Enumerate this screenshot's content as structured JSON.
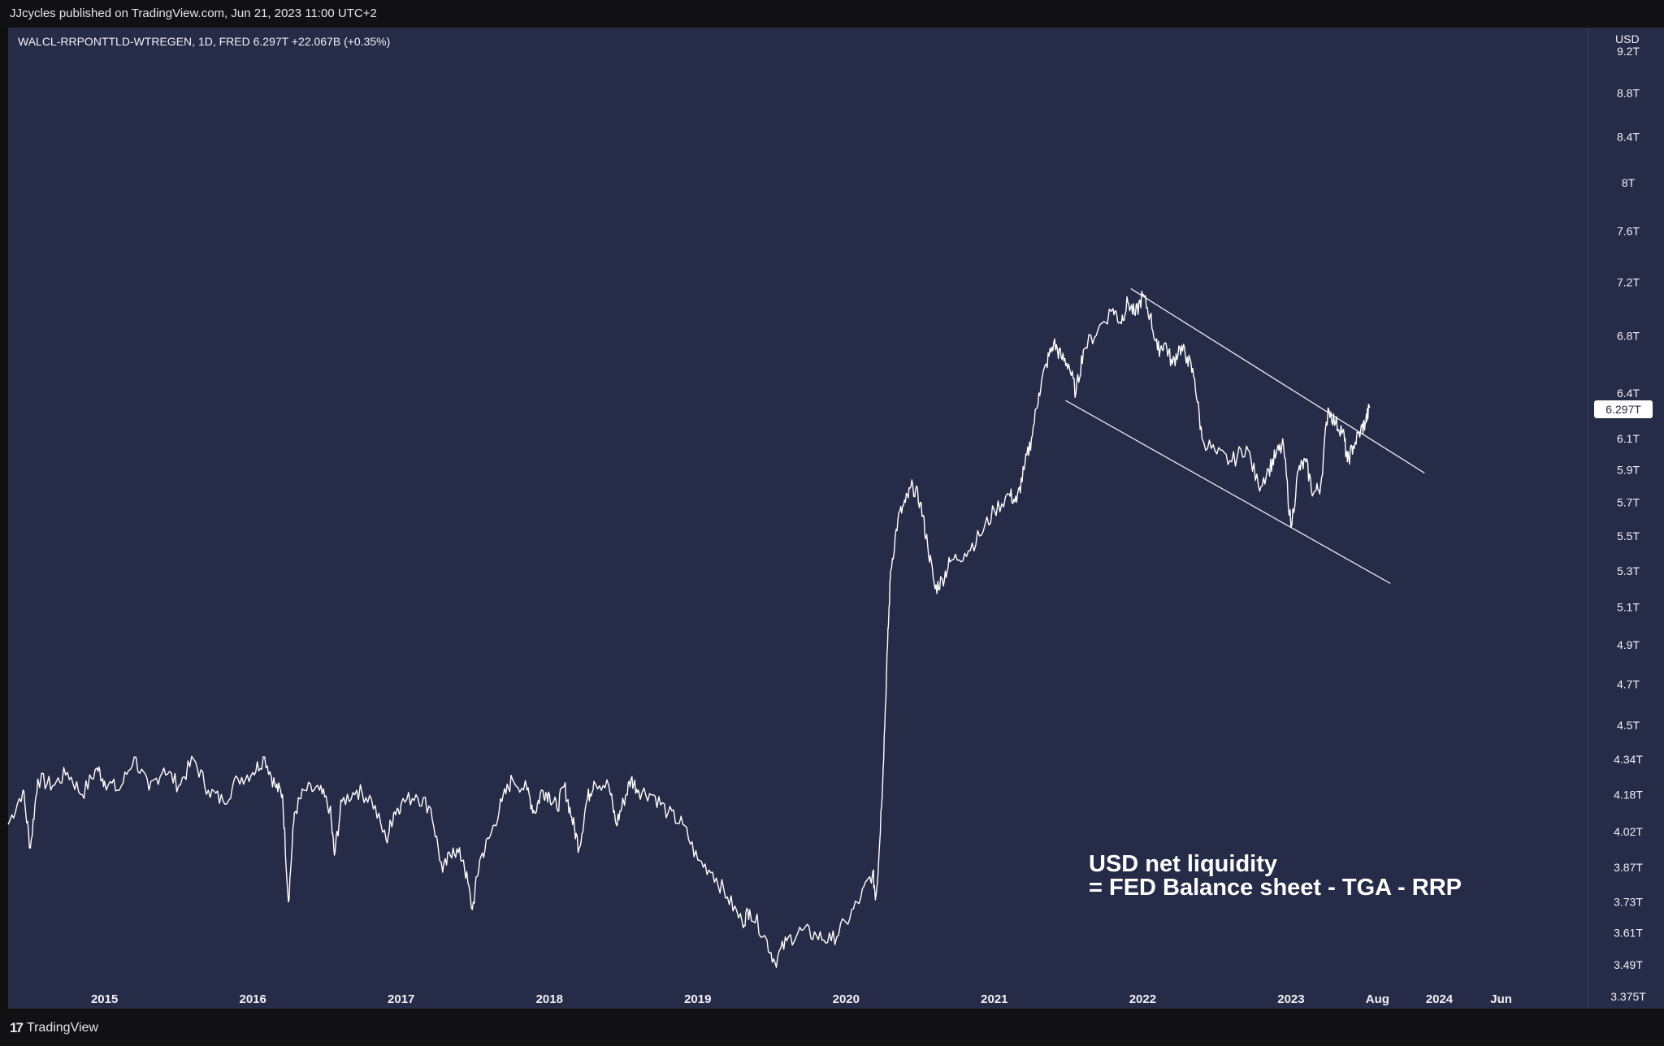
{
  "header": {
    "publisher": "JJcycles published on TradingView.com, Jun 21, 2023 11:00 UTC+2"
  },
  "footer": {
    "logo_mark": "17",
    "logo_text": "TradingView"
  },
  "colors": {
    "background": "#262c47",
    "line": "#ffffff",
    "text": "#f1f2f6"
  },
  "chart_data": {
    "type": "line",
    "symbol": "WALCL-RRPONTTLD-WTREGEN",
    "interval": "1D",
    "source": "FRED",
    "last_value": "6.297T",
    "change": "+22.067B (+0.35%)",
    "currency": "USD",
    "price_label": "6.297T",
    "y_scale": "log",
    "y_unit": "T",
    "ylim": [
      3.36,
      9.35
    ],
    "xlim": [
      2014.35,
      2025.0
    ],
    "y_ticks": [
      "9.2T",
      "8.8T",
      "8.4T",
      "8T",
      "7.6T",
      "7.2T",
      "6.8T",
      "6.4T",
      "6.1T",
      "5.9T",
      "5.7T",
      "5.5T",
      "5.3T",
      "5.1T",
      "4.9T",
      "4.7T",
      "4.5T",
      "4.34T",
      "4.18T",
      "4.02T",
      "3.87T",
      "3.73T",
      "3.61T",
      "3.49T",
      "3.375T"
    ],
    "x_ticks": [
      {
        "label": "2015",
        "x": 2015.0
      },
      {
        "label": "2016",
        "x": 2016.0
      },
      {
        "label": "2017",
        "x": 2017.0
      },
      {
        "label": "2018",
        "x": 2018.0
      },
      {
        "label": "2019",
        "x": 2019.0
      },
      {
        "label": "2020",
        "x": 2020.0
      },
      {
        "label": "2021",
        "x": 2021.0
      },
      {
        "label": "2022",
        "x": 2022.0
      },
      {
        "label": "2023",
        "x": 2023.0
      },
      {
        "label": "Aug",
        "x": 2023.583
      },
      {
        "label": "2024",
        "x": 2024.0
      },
      {
        "label": "Jun",
        "x": 2024.417
      }
    ],
    "grid": false,
    "series": [
      {
        "points": [
          [
            2014.35,
            4.05
          ],
          [
            2014.45,
            4.2
          ],
          [
            2014.5,
            3.95
          ],
          [
            2014.55,
            4.25
          ],
          [
            2014.65,
            4.22
          ],
          [
            2014.75,
            4.28
          ],
          [
            2014.85,
            4.18
          ],
          [
            2014.95,
            4.3
          ],
          [
            2015.0,
            4.24
          ],
          [
            2015.1,
            4.2
          ],
          [
            2015.2,
            4.35
          ],
          [
            2015.3,
            4.2
          ],
          [
            2015.4,
            4.3
          ],
          [
            2015.5,
            4.22
          ],
          [
            2015.6,
            4.34
          ],
          [
            2015.7,
            4.2
          ],
          [
            2015.8,
            4.15
          ],
          [
            2015.9,
            4.25
          ],
          [
            2016.0,
            4.28
          ],
          [
            2016.08,
            4.35
          ],
          [
            2016.15,
            4.22
          ],
          [
            2016.2,
            4.18
          ],
          [
            2016.24,
            3.73
          ],
          [
            2016.28,
            4.1
          ],
          [
            2016.35,
            4.2
          ],
          [
            2016.45,
            4.2
          ],
          [
            2016.52,
            4.12
          ],
          [
            2016.55,
            3.92
          ],
          [
            2016.6,
            4.15
          ],
          [
            2016.7,
            4.2
          ],
          [
            2016.8,
            4.16
          ],
          [
            2016.9,
            3.98
          ],
          [
            2016.95,
            4.1
          ],
          [
            2017.0,
            4.14
          ],
          [
            2017.1,
            4.18
          ],
          [
            2017.2,
            4.12
          ],
          [
            2017.28,
            3.85
          ],
          [
            2017.35,
            3.95
          ],
          [
            2017.42,
            3.9
          ],
          [
            2017.48,
            3.7
          ],
          [
            2017.53,
            3.9
          ],
          [
            2017.6,
            4.0
          ],
          [
            2017.68,
            4.15
          ],
          [
            2017.75,
            4.25
          ],
          [
            2017.85,
            4.2
          ],
          [
            2017.9,
            4.1
          ],
          [
            2017.95,
            4.2
          ],
          [
            2018.0,
            4.18
          ],
          [
            2018.05,
            4.12
          ],
          [
            2018.1,
            4.22
          ],
          [
            2018.15,
            4.08
          ],
          [
            2018.2,
            3.95
          ],
          [
            2018.25,
            4.15
          ],
          [
            2018.3,
            4.24
          ],
          [
            2018.4,
            4.22
          ],
          [
            2018.45,
            4.05
          ],
          [
            2018.5,
            4.15
          ],
          [
            2018.55,
            4.25
          ],
          [
            2018.6,
            4.2
          ],
          [
            2018.7,
            4.18
          ],
          [
            2018.8,
            4.1
          ],
          [
            2018.9,
            4.05
          ],
          [
            2019.0,
            3.9
          ],
          [
            2019.1,
            3.85
          ],
          [
            2019.2,
            3.75
          ],
          [
            2019.3,
            3.65
          ],
          [
            2019.35,
            3.7
          ],
          [
            2019.45,
            3.6
          ],
          [
            2019.52,
            3.5
          ],
          [
            2019.6,
            3.58
          ],
          [
            2019.7,
            3.62
          ],
          [
            2019.8,
            3.6
          ],
          [
            2019.9,
            3.58
          ],
          [
            2020.0,
            3.65
          ],
          [
            2020.1,
            3.75
          ],
          [
            2020.18,
            3.85
          ],
          [
            2020.2,
            3.75
          ],
          [
            2020.22,
            3.9
          ],
          [
            2020.25,
            4.3
          ],
          [
            2020.28,
            4.9
          ],
          [
            2020.3,
            5.3
          ],
          [
            2020.35,
            5.6
          ],
          [
            2020.4,
            5.7
          ],
          [
            2020.45,
            5.8
          ],
          [
            2020.5,
            5.7
          ],
          [
            2020.55,
            5.45
          ],
          [
            2020.6,
            5.2
          ],
          [
            2020.65,
            5.25
          ],
          [
            2020.7,
            5.35
          ],
          [
            2020.8,
            5.4
          ],
          [
            2020.9,
            5.5
          ],
          [
            2021.0,
            5.65
          ],
          [
            2021.1,
            5.75
          ],
          [
            2021.15,
            5.7
          ],
          [
            2021.2,
            5.9
          ],
          [
            2021.25,
            6.1
          ],
          [
            2021.3,
            6.4
          ],
          [
            2021.35,
            6.6
          ],
          [
            2021.4,
            6.75
          ],
          [
            2021.45,
            6.65
          ],
          [
            2021.5,
            6.6
          ],
          [
            2021.55,
            6.4
          ],
          [
            2021.6,
            6.7
          ],
          [
            2021.7,
            6.85
          ],
          [
            2021.8,
            7.0
          ],
          [
            2021.85,
            6.9
          ],
          [
            2021.9,
            7.05
          ],
          [
            2021.95,
            6.95
          ],
          [
            2022.0,
            7.1
          ],
          [
            2022.05,
            6.95
          ],
          [
            2022.1,
            6.7
          ],
          [
            2022.15,
            6.75
          ],
          [
            2022.2,
            6.6
          ],
          [
            2022.25,
            6.72
          ],
          [
            2022.3,
            6.65
          ],
          [
            2022.35,
            6.5
          ],
          [
            2022.4,
            6.1
          ],
          [
            2022.5,
            6.0
          ],
          [
            2022.6,
            5.95
          ],
          [
            2022.7,
            6.05
          ],
          [
            2022.78,
            5.8
          ],
          [
            2022.85,
            5.9
          ],
          [
            2022.9,
            6.0
          ],
          [
            2022.95,
            6.05
          ],
          [
            2023.0,
            5.55
          ],
          [
            2023.05,
            5.9
          ],
          [
            2023.1,
            5.95
          ],
          [
            2023.15,
            5.75
          ],
          [
            2023.2,
            5.8
          ],
          [
            2023.25,
            6.3
          ],
          [
            2023.3,
            6.2
          ],
          [
            2023.35,
            6.15
          ],
          [
            2023.38,
            5.95
          ],
          [
            2023.42,
            6.05
          ],
          [
            2023.47,
            6.15
          ],
          [
            2023.5,
            6.2
          ],
          [
            2023.53,
            6.3
          ]
        ]
      }
    ],
    "trendlines": [
      {
        "from": [
          2021.92,
          7.15
        ],
        "to": [
          2023.9,
          5.88
        ]
      },
      {
        "from": [
          2021.48,
          6.35
        ],
        "to": [
          2023.67,
          5.23
        ]
      }
    ],
    "annotations": [
      "USD net liquidity",
      "= FED Balance sheet - TGA - RRP"
    ]
  }
}
